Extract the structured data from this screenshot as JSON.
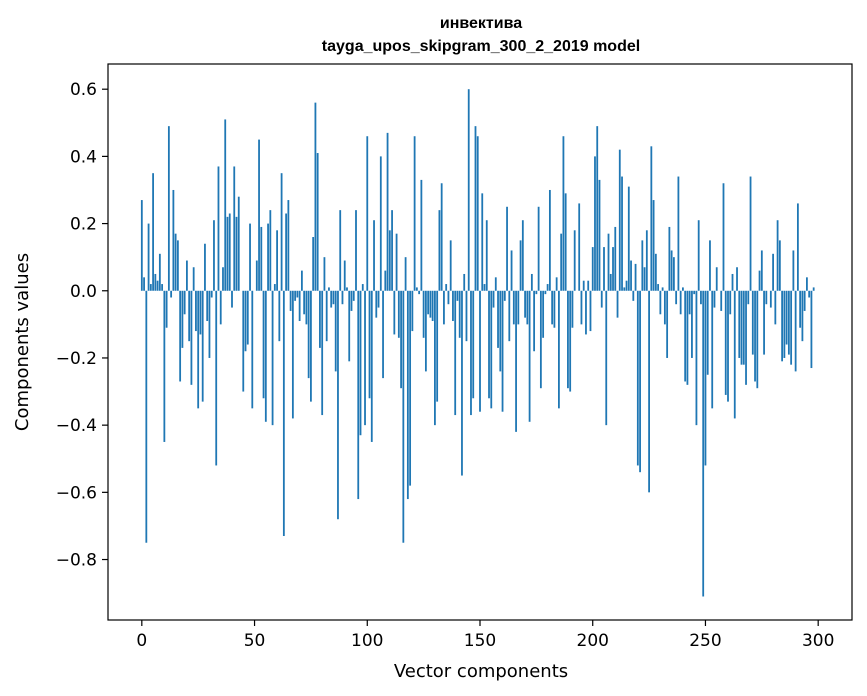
{
  "chart_data": {
    "type": "bar",
    "title": "инвектива",
    "subtitle": "tayga_upos_skipgram_300_2_2019 model",
    "xlabel": "Vector components",
    "ylabel": "Components values",
    "xlim": [
      -15,
      315
    ],
    "ylim": [
      -0.98,
      0.675
    ],
    "xticks": [
      0,
      50,
      100,
      150,
      200,
      250,
      300
    ],
    "xtick_labels": [
      "0",
      "50",
      "100",
      "150",
      "200",
      "250",
      "300"
    ],
    "yticks": [
      -0.8,
      -0.6,
      -0.4,
      -0.2,
      0.0,
      0.2,
      0.4,
      0.6
    ],
    "ytick_labels": [
      "−0.8",
      "−0.6",
      "−0.4",
      "−0.2",
      "0.0",
      "0.2",
      "0.4",
      "0.6"
    ],
    "bar_color": "#1f77b4",
    "grid": false,
    "values": [
      0.27,
      0.04,
      -0.75,
      0.2,
      0.02,
      0.35,
      0.05,
      0.03,
      0.11,
      0.02,
      -0.45,
      -0.11,
      0.49,
      -0.02,
      0.3,
      0.17,
      0.15,
      -0.27,
      -0.17,
      -0.07,
      0.09,
      -0.15,
      -0.28,
      0.07,
      -0.12,
      -0.35,
      -0.13,
      -0.33,
      0.14,
      -0.09,
      -0.2,
      -0.02,
      0.21,
      -0.52,
      0.37,
      -0.1,
      0.07,
      0.51,
      0.22,
      0.23,
      -0.05,
      0.37,
      0.22,
      0.28,
      0.0,
      -0.3,
      -0.18,
      -0.16,
      0.2,
      -0.35,
      0.0,
      0.09,
      0.45,
      0.19,
      -0.32,
      -0.39,
      0.2,
      0.24,
      -0.4,
      0.02,
      0.18,
      -0.15,
      0.35,
      -0.73,
      0.23,
      0.27,
      -0.06,
      -0.38,
      -0.03,
      -0.02,
      -0.09,
      0.06,
      -0.07,
      -0.1,
      -0.26,
      -0.33,
      0.16,
      0.56,
      0.41,
      -0.17,
      -0.37,
      0.1,
      -0.15,
      0.01,
      -0.05,
      -0.04,
      -0.24,
      -0.68,
      0.24,
      -0.04,
      0.09,
      0.01,
      -0.21,
      -0.06,
      -0.03,
      0.24,
      -0.62,
      -0.43,
      0.02,
      -0.4,
      0.46,
      -0.32,
      -0.45,
      0.21,
      -0.08,
      -0.05,
      0.4,
      -0.26,
      0.06,
      0.47,
      0.18,
      0.24,
      -0.13,
      0.17,
      -0.14,
      -0.29,
      -0.75,
      0.1,
      -0.62,
      -0.58,
      -0.12,
      0.46,
      0.01,
      -0.01,
      0.33,
      -0.14,
      -0.24,
      -0.07,
      -0.08,
      -0.09,
      -0.4,
      -0.33,
      0.24,
      0.32,
      -0.1,
      0.02,
      -0.04,
      0.15,
      -0.09,
      -0.37,
      -0.03,
      -0.14,
      -0.55,
      0.05,
      -0.15,
      0.6,
      -0.37,
      -0.32,
      0.49,
      0.46,
      -0.36,
      0.29,
      0.02,
      0.21,
      -0.32,
      -0.35,
      -0.05,
      0.04,
      -0.17,
      -0.24,
      -0.36,
      -0.03,
      0.25,
      -0.15,
      0.12,
      -0.1,
      -0.42,
      -0.1,
      0.15,
      0.21,
      -0.08,
      -0.1,
      -0.39,
      0.05,
      -0.18,
      -0.01,
      0.25,
      -0.29,
      -0.14,
      -0.01,
      0.02,
      0.3,
      -0.1,
      -0.11,
      0.04,
      -0.35,
      0.17,
      0.46,
      0.29,
      -0.29,
      -0.3,
      -0.11,
      0.18,
      0.0,
      0.26,
      -0.1,
      0.03,
      -0.13,
      0.03,
      -0.12,
      0.13,
      0.4,
      0.49,
      0.33,
      -0.05,
      0.13,
      -0.4,
      0.17,
      0.05,
      0.13,
      0.19,
      -0.08,
      0.42,
      0.34,
      0.01,
      0.03,
      0.31,
      0.09,
      -0.03,
      0.08,
      -0.52,
      -0.54,
      0.15,
      0.07,
      0.18,
      -0.6,
      0.43,
      0.27,
      0.11,
      0.02,
      -0.07,
      0.01,
      -0.1,
      -0.2,
      0.19,
      0.12,
      0.1,
      -0.04,
      0.34,
      -0.07,
      0.01,
      -0.27,
      -0.28,
      -0.07,
      -0.2,
      -0.01,
      -0.4,
      0.21,
      -0.04,
      -0.91,
      -0.52,
      -0.25,
      0.15,
      -0.35,
      -0.05,
      0.07,
      0.0,
      -0.06,
      0.32,
      -0.31,
      -0.33,
      -0.07,
      0.05,
      -0.38,
      0.07,
      -0.2,
      -0.22,
      -0.22,
      -0.28,
      -0.04,
      0.34,
      -0.19,
      -0.27,
      -0.29,
      0.06,
      0.12,
      -0.19,
      -0.04,
      0.0,
      -0.05,
      0.11,
      -0.1,
      0.21,
      0.15,
      -0.21,
      -0.2,
      -0.16,
      -0.19,
      -0.22,
      0.12,
      -0.24,
      0.26,
      -0.11,
      -0.15,
      -0.06,
      0.04,
      -0.02,
      -0.23,
      0.01
    ]
  }
}
